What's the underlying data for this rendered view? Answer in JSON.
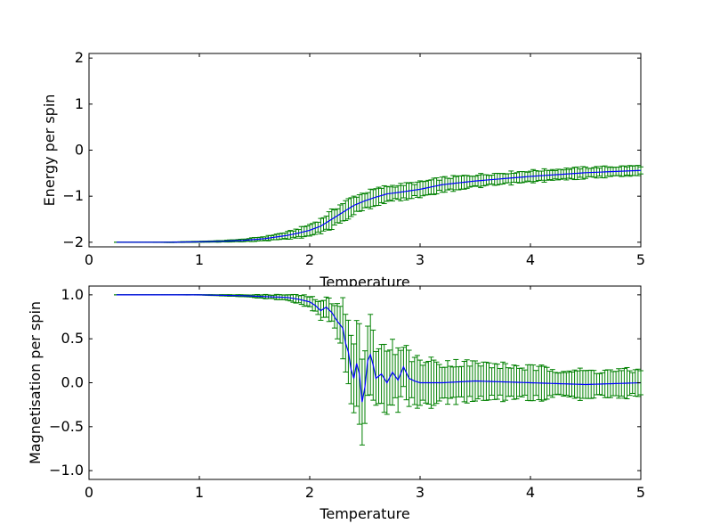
{
  "chart_data": [
    {
      "type": "line",
      "subtype": "errorbar",
      "xlabel": "Temperature",
      "ylabel": "Energy per spin",
      "xlim": [
        0,
        5
      ],
      "ylim": [
        -2.1,
        2.1
      ],
      "xticks": [
        "0",
        "1",
        "2",
        "3",
        "4",
        "5"
      ],
      "yticks": [
        "-2",
        "-1",
        "0",
        "1",
        "2"
      ],
      "grid": false,
      "colors": {
        "line": "#0000ff",
        "errorbar": "#008000"
      },
      "x_range": [
        0.25,
        5.0
      ],
      "x_step": 0.025,
      "series": [
        {
          "line": {
            "x": [
              0.25,
              0.5,
              0.75,
              1.0,
              1.2,
              1.4,
              1.6,
              1.8,
              1.9,
              2.0,
              2.1,
              2.2,
              2.3,
              2.4,
              2.5,
              2.6,
              2.7,
              2.8,
              3.0,
              3.2,
              3.5,
              4.0,
              4.5,
              5.0
            ],
            "y": [
              -2.0,
              -2.0,
              -2.0,
              -1.99,
              -1.98,
              -1.96,
              -1.92,
              -1.85,
              -1.8,
              -1.74,
              -1.65,
              -1.5,
              -1.35,
              -1.2,
              -1.1,
              -1.02,
              -0.95,
              -0.92,
              -0.85,
              -0.75,
              -0.67,
              -0.57,
              -0.49,
              -0.44
            ]
          },
          "error": {
            "x": [
              0.25,
              0.75,
              1.0,
              1.2,
              1.4,
              1.6,
              1.8,
              2.0,
              2.2,
              2.3,
              2.4,
              2.6,
              2.8,
              3.0,
              3.5,
              4.0,
              4.5,
              5.0
            ],
            "y": [
              0.0,
              0.005,
              0.01,
              0.015,
              0.025,
              0.045,
              0.07,
              0.12,
              0.18,
              0.2,
              0.19,
              0.17,
              0.16,
              0.15,
              0.13,
              0.12,
              0.11,
              0.1
            ]
          }
        }
      ]
    },
    {
      "type": "line",
      "subtype": "errorbar",
      "xlabel": "Temperature",
      "ylabel": "Magnetisation per spin",
      "xlim": [
        0,
        5
      ],
      "ylim": [
        -1.1,
        1.1
      ],
      "xticks": [
        "0",
        "1",
        "2",
        "3",
        "4",
        "5"
      ],
      "yticks": [
        "1.0",
        "0.5",
        "0.0",
        "-0.5",
        "-1.0"
      ],
      "ytick_values": [
        1.0,
        0.5,
        0.0,
        -0.5,
        -1.0
      ],
      "grid": false,
      "colors": {
        "line": "#0000ff",
        "errorbar": "#008000"
      },
      "x_range": [
        0.25,
        5.0
      ],
      "x_step": 0.025,
      "series": [
        {
          "line": {
            "x": [
              0.25,
              1.0,
              1.2,
              1.4,
              1.6,
              1.8,
              1.9,
              2.0,
              2.05,
              2.1,
              2.15,
              2.2,
              2.25,
              2.3,
              2.325,
              2.35,
              2.375,
              2.4,
              2.425,
              2.45,
              2.475,
              2.5,
              2.525,
              2.55,
              2.575,
              2.6,
              2.65,
              2.7,
              2.75,
              2.8,
              2.85,
              2.9,
              2.95,
              3.0,
              3.2,
              3.5,
              4.0,
              4.5,
              5.0
            ],
            "y": [
              1.0,
              1.0,
              0.995,
              0.99,
              0.98,
              0.97,
              0.95,
              0.92,
              0.88,
              0.82,
              0.86,
              0.8,
              0.7,
              0.62,
              0.45,
              0.35,
              0.15,
              0.05,
              0.22,
              0.1,
              -0.22,
              -0.05,
              0.25,
              0.32,
              0.2,
              0.05,
              0.1,
              0.0,
              0.12,
              0.03,
              0.18,
              0.05,
              0.02,
              0.0,
              0.0,
              0.02,
              0.0,
              -0.02,
              0.0
            ]
          },
          "error": {
            "x": [
              0.25,
              1.0,
              1.4,
              1.8,
              2.0,
              2.2,
              2.3,
              2.4,
              2.5,
              2.6,
              2.8,
              3.0,
              3.5,
              4.0,
              4.5,
              5.0
            ],
            "y": [
              0.0,
              0.002,
              0.01,
              0.03,
              0.06,
              0.12,
              0.3,
              0.4,
              0.55,
              0.35,
              0.3,
              0.25,
              0.2,
              0.17,
              0.15,
              0.14
            ]
          }
        }
      ]
    }
  ]
}
